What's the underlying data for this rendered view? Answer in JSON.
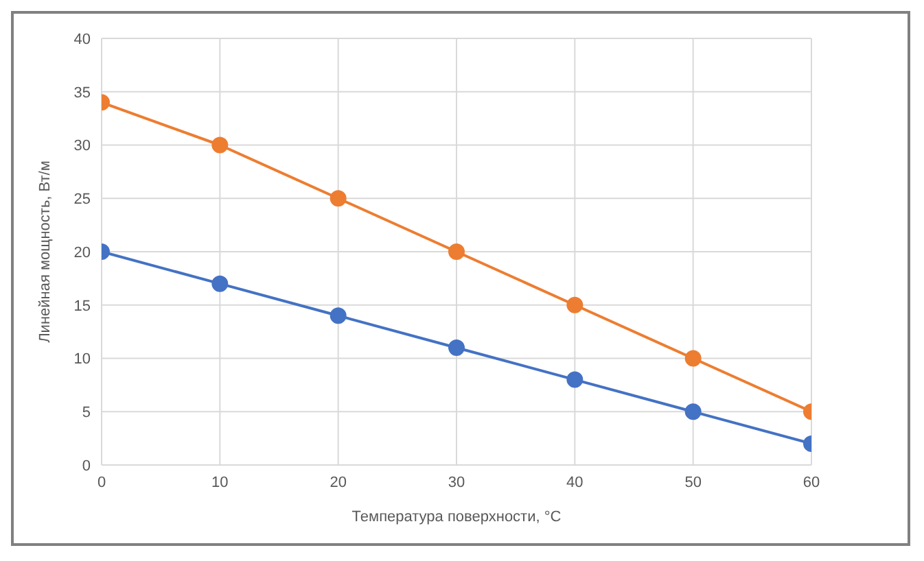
{
  "chart_data": {
    "type": "line",
    "xlabel": "Температура поверхности, °С",
    "ylabel": "Линейная мощность, Вт/м",
    "x": [
      0,
      10,
      20,
      30,
      40,
      50,
      60
    ],
    "series": [
      {
        "color": "#4472c4",
        "values": [
          20,
          17,
          14,
          11,
          8,
          5,
          2
        ]
      },
      {
        "color": "#ed7d31",
        "values": [
          34,
          30,
          25,
          20,
          15,
          10,
          5
        ]
      }
    ],
    "xlim": [
      0,
      60
    ],
    "xticks": [
      0,
      10,
      20,
      30,
      40,
      50,
      60
    ],
    "ylim": [
      0,
      40
    ],
    "yticks": [
      0,
      5,
      10,
      15,
      20,
      25,
      30,
      35,
      40
    ],
    "grid": true,
    "marker": "circle",
    "line_style": "solid"
  }
}
